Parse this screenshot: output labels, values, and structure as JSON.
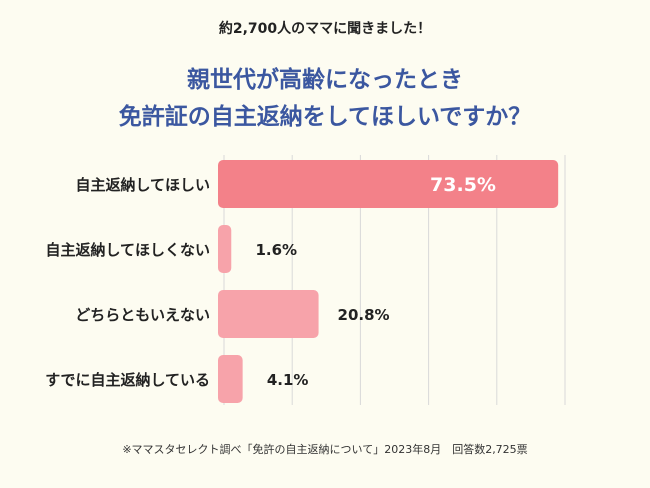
{
  "header": {
    "intro": "約2,700人のママに聞きました！",
    "title_line1": "親世代が高齢になったとき",
    "title_line2": "免許証の自主返納をしてほしいですか？"
  },
  "colors": {
    "background": "#fdfcf1",
    "title": "#3b57a0",
    "bar_highlight": "#f38189",
    "bar": "#f7a3aa",
    "grid": "#d9d9d9"
  },
  "chart_data": {
    "type": "bar",
    "orientation": "horizontal",
    "categories": [
      "自主返納してほしい",
      "自主返納してほしくない",
      "どちらともいえない",
      "すでに自主返納している"
    ],
    "values": [
      73.5,
      1.6,
      20.8,
      4.1
    ],
    "value_labels": [
      "73.5%",
      "1.6%",
      "20.8%",
      "4.1%"
    ],
    "xlim": [
      0,
      75
    ],
    "grid": true
  },
  "footer": {
    "note": "※ママスタセレクト調べ「免許の自主返納について」2023年8月　回答数2,725票"
  }
}
